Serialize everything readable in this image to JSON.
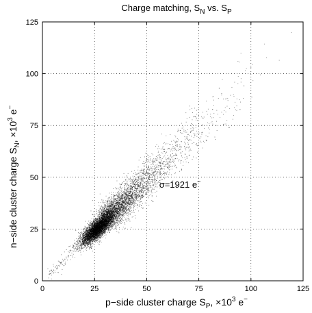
{
  "chart_data": {
    "type": "scatter",
    "title": {
      "main": "Charge matching, S",
      "sub1": "N",
      "mid": " vs. S",
      "sub2": "P"
    },
    "xlabel": {
      "pre": "p−side cluster charge S",
      "sub": "P",
      "mid": ", ×10",
      "sup": "3",
      "post": " e",
      "sup2": "−"
    },
    "ylabel": {
      "pre": "n−side cluster charge S",
      "sub": "N",
      "mid": ", ×10",
      "sup": "3",
      "post": " e",
      "sup2": "−"
    },
    "xlim": [
      0,
      125
    ],
    "ylim": [
      0,
      125
    ],
    "xticks": [
      0,
      25,
      50,
      75,
      100,
      125
    ],
    "yticks": [
      0,
      25,
      50,
      75,
      100,
      125
    ],
    "grid": true,
    "annotation": {
      "pre": "σ=1921 e",
      "sup": "−",
      "x": 56,
      "y": 45
    },
    "distribution": {
      "relation": "y = x",
      "core_center": [
        26,
        25
      ],
      "sigma_thousands_e": 1.921,
      "x_range": [
        3,
        120
      ]
    }
  }
}
